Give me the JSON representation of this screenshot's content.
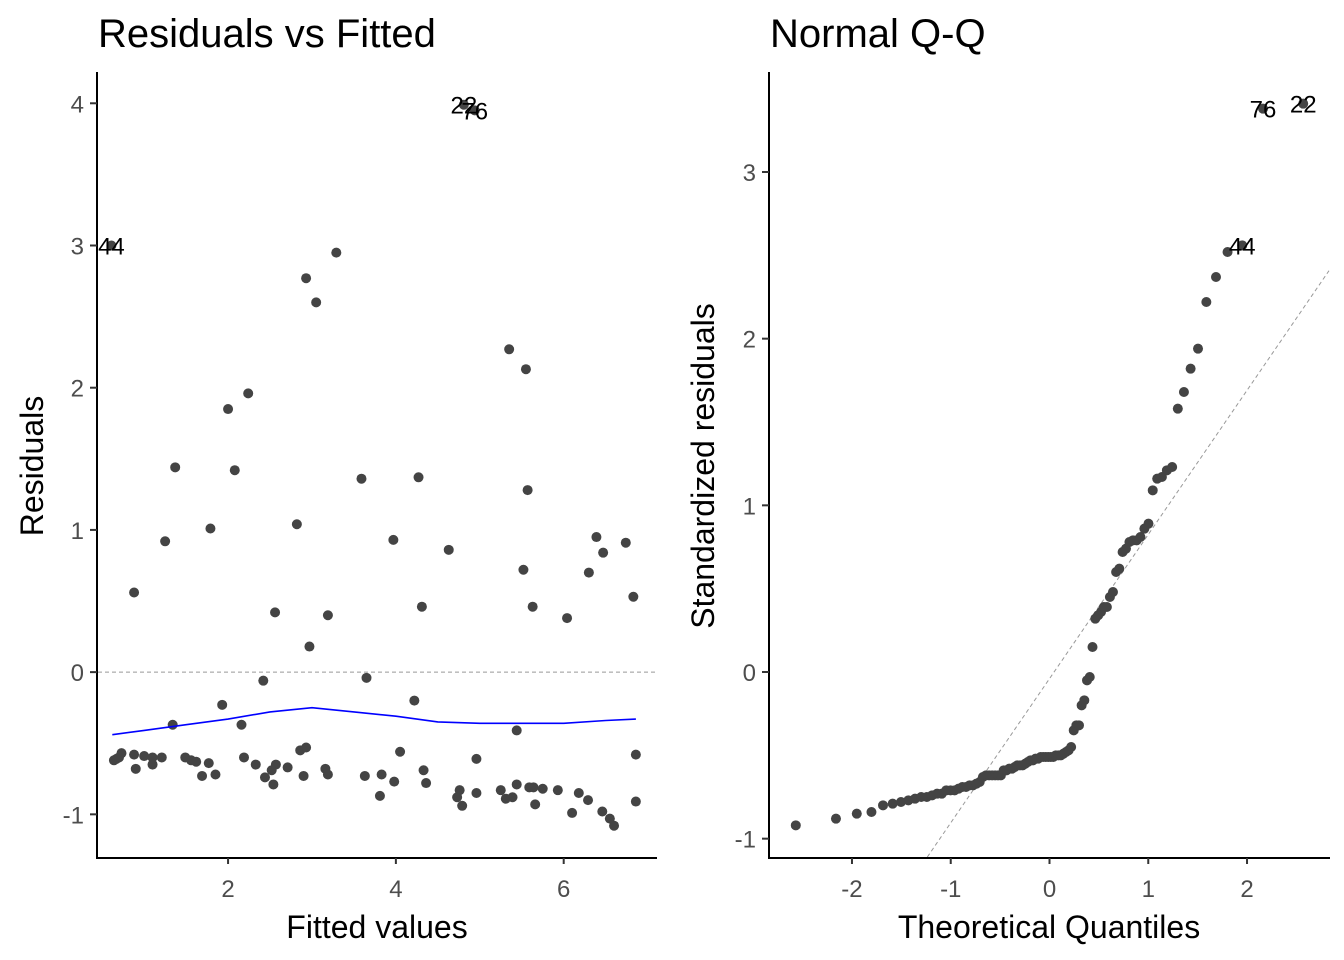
{
  "chart_data": [
    {
      "type": "scatter",
      "title": "Residuals vs Fitted",
      "xlabel": "Fitted values",
      "ylabel": "Residuals",
      "xlim": [
        0.45,
        7.1
      ],
      "ylim": [
        -1.3,
        4.22
      ],
      "xticks": [
        2,
        4,
        6
      ],
      "yticks": [
        -1,
        0,
        1,
        2,
        3,
        4
      ],
      "grid": false,
      "reference_line": {
        "y": 0,
        "style": "dashed",
        "color": "#999999"
      },
      "point_color": "#444444",
      "smooth_color": "#0000ff",
      "points": [
        [
          0.61,
          3.0
        ],
        [
          4.81,
          3.99
        ],
        [
          4.94,
          3.95
        ],
        [
          3.29,
          2.95
        ],
        [
          2.93,
          2.77
        ],
        [
          3.05,
          2.6
        ],
        [
          5.35,
          2.27
        ],
        [
          5.55,
          2.13
        ],
        [
          2.24,
          1.96
        ],
        [
          2.0,
          1.85
        ],
        [
          1.37,
          1.44
        ],
        [
          2.08,
          1.42
        ],
        [
          4.27,
          1.37
        ],
        [
          3.59,
          1.36
        ],
        [
          5.57,
          1.28
        ],
        [
          2.82,
          1.04
        ],
        [
          1.79,
          1.01
        ],
        [
          6.39,
          0.95
        ],
        [
          3.97,
          0.93
        ],
        [
          1.25,
          0.92
        ],
        [
          6.74,
          0.91
        ],
        [
          4.63,
          0.86
        ],
        [
          6.47,
          0.84
        ],
        [
          5.52,
          0.72
        ],
        [
          6.3,
          0.7
        ],
        [
          0.88,
          0.56
        ],
        [
          6.83,
          0.53
        ],
        [
          4.31,
          0.46
        ],
        [
          5.63,
          0.46
        ],
        [
          2.56,
          0.42
        ],
        [
          3.19,
          0.4
        ],
        [
          6.04,
          0.38
        ],
        [
          2.97,
          0.18
        ],
        [
          2.42,
          -0.06
        ],
        [
          3.65,
          -0.04
        ],
        [
          1.93,
          -0.23
        ],
        [
          4.22,
          -0.2
        ],
        [
          1.34,
          -0.37
        ],
        [
          2.16,
          -0.37
        ],
        [
          5.44,
          -0.41
        ],
        [
          0.64,
          -0.62
        ],
        [
          0.67,
          -0.61
        ],
        [
          0.7,
          -0.6
        ],
        [
          0.73,
          -0.57
        ],
        [
          0.88,
          -0.58
        ],
        [
          0.9,
          -0.68
        ],
        [
          1.0,
          -0.59
        ],
        [
          1.1,
          -0.6
        ],
        [
          1.1,
          -0.65
        ],
        [
          1.21,
          -0.6
        ],
        [
          1.49,
          -0.6
        ],
        [
          1.56,
          -0.62
        ],
        [
          1.62,
          -0.63
        ],
        [
          1.77,
          -0.64
        ],
        [
          1.69,
          -0.73
        ],
        [
          1.85,
          -0.72
        ],
        [
          2.19,
          -0.6
        ],
        [
          2.33,
          -0.65
        ],
        [
          2.44,
          -0.74
        ],
        [
          2.54,
          -0.79
        ],
        [
          2.57,
          -0.65
        ],
        [
          2.52,
          -0.69
        ],
        [
          2.71,
          -0.67
        ],
        [
          2.86,
          -0.55
        ],
        [
          2.93,
          -0.53
        ],
        [
          2.9,
          -0.73
        ],
        [
          3.16,
          -0.68
        ],
        [
          3.19,
          -0.72
        ],
        [
          3.63,
          -0.73
        ],
        [
          3.83,
          -0.72
        ],
        [
          3.81,
          -0.87
        ],
        [
          3.98,
          -0.77
        ],
        [
          4.05,
          -0.56
        ],
        [
          4.96,
          -0.61
        ],
        [
          6.86,
          -0.58
        ],
        [
          4.33,
          -0.69
        ],
        [
          4.36,
          -0.78
        ],
        [
          4.76,
          -0.83
        ],
        [
          4.73,
          -0.88
        ],
        [
          4.79,
          -0.94
        ],
        [
          4.96,
          -0.85
        ],
        [
          5.25,
          -0.83
        ],
        [
          5.31,
          -0.89
        ],
        [
          5.39,
          -0.88
        ],
        [
          5.44,
          -0.79
        ],
        [
          5.59,
          -0.81
        ],
        [
          5.64,
          -0.81
        ],
        [
          5.75,
          -0.82
        ],
        [
          5.66,
          -0.93
        ],
        [
          5.93,
          -0.83
        ],
        [
          6.18,
          -0.85
        ],
        [
          6.29,
          -0.9
        ],
        [
          6.1,
          -0.99
        ],
        [
          6.46,
          -0.98
        ],
        [
          6.55,
          -1.03
        ],
        [
          6.6,
          -1.08
        ],
        [
          6.86,
          -0.91
        ]
      ],
      "smooth": [
        [
          0.62,
          -0.44
        ],
        [
          1.0,
          -0.41
        ],
        [
          1.5,
          -0.37
        ],
        [
          2.0,
          -0.33
        ],
        [
          2.5,
          -0.28
        ],
        [
          3.0,
          -0.25
        ],
        [
          3.5,
          -0.28
        ],
        [
          4.0,
          -0.31
        ],
        [
          4.5,
          -0.35
        ],
        [
          5.0,
          -0.36
        ],
        [
          5.5,
          -0.36
        ],
        [
          6.0,
          -0.36
        ],
        [
          6.5,
          -0.34
        ],
        [
          6.86,
          -0.33
        ]
      ],
      "annotations": [
        {
          "label": "44",
          "x": 0.61,
          "y": 3.0
        },
        {
          "label": "22",
          "x": 4.81,
          "y": 3.99
        },
        {
          "label": "76",
          "x": 4.94,
          "y": 3.95
        }
      ]
    },
    {
      "type": "scatter",
      "title": "Normal Q-Q",
      "xlabel": "Theoretical Quantiles",
      "ylabel": "Standardized residuals",
      "xlim": [
        -2.83,
        2.83
      ],
      "ylim": [
        -1.11,
        3.6
      ],
      "xticks": [
        -2,
        -1,
        0,
        1,
        2
      ],
      "yticks": [
        -1,
        0,
        1,
        2,
        3
      ],
      "grid": false,
      "point_color": "#444444",
      "reference_line": {
        "slope": 0.865,
        "intercept": -0.04,
        "style": "dashed",
        "color": "#999999"
      },
      "sample_quantiles_sorted": [
        -0.92,
        -0.88,
        -0.85,
        -0.84,
        -0.8,
        -0.79,
        -0.78,
        -0.77,
        -0.76,
        -0.75,
        -0.75,
        -0.74,
        -0.73,
        -0.73,
        -0.71,
        -0.71,
        -0.71,
        -0.7,
        -0.69,
        -0.69,
        -0.68,
        -0.68,
        -0.67,
        -0.66,
        -0.63,
        -0.62,
        -0.62,
        -0.62,
        -0.62,
        -0.62,
        -0.62,
        -0.59,
        -0.59,
        -0.58,
        -0.58,
        -0.57,
        -0.56,
        -0.56,
        -0.56,
        -0.55,
        -0.54,
        -0.53,
        -0.53,
        -0.52,
        -0.52,
        -0.51,
        -0.51,
        -0.51,
        -0.51,
        -0.51,
        -0.51,
        -0.5,
        -0.5,
        -0.5,
        -0.49,
        -0.48,
        -0.47,
        -0.45,
        -0.35,
        -0.32,
        -0.32,
        -0.2,
        -0.17,
        -0.05,
        -0.03,
        0.15,
        0.32,
        0.34,
        0.36,
        0.39,
        0.39,
        0.45,
        0.48,
        0.6,
        0.62,
        0.72,
        0.74,
        0.78,
        0.79,
        0.79,
        0.81,
        0.86,
        0.89,
        1.09,
        1.16,
        1.17,
        1.21,
        1.23,
        1.58,
        1.68,
        1.82,
        1.94,
        2.22,
        2.37,
        2.52,
        2.56,
        3.38,
        3.41
      ],
      "annotations": [
        {
          "label": "44",
          "rank_from_top": 3
        },
        {
          "label": "76",
          "rank_from_top": 2
        },
        {
          "label": "22",
          "rank_from_top": 1
        }
      ]
    }
  ]
}
